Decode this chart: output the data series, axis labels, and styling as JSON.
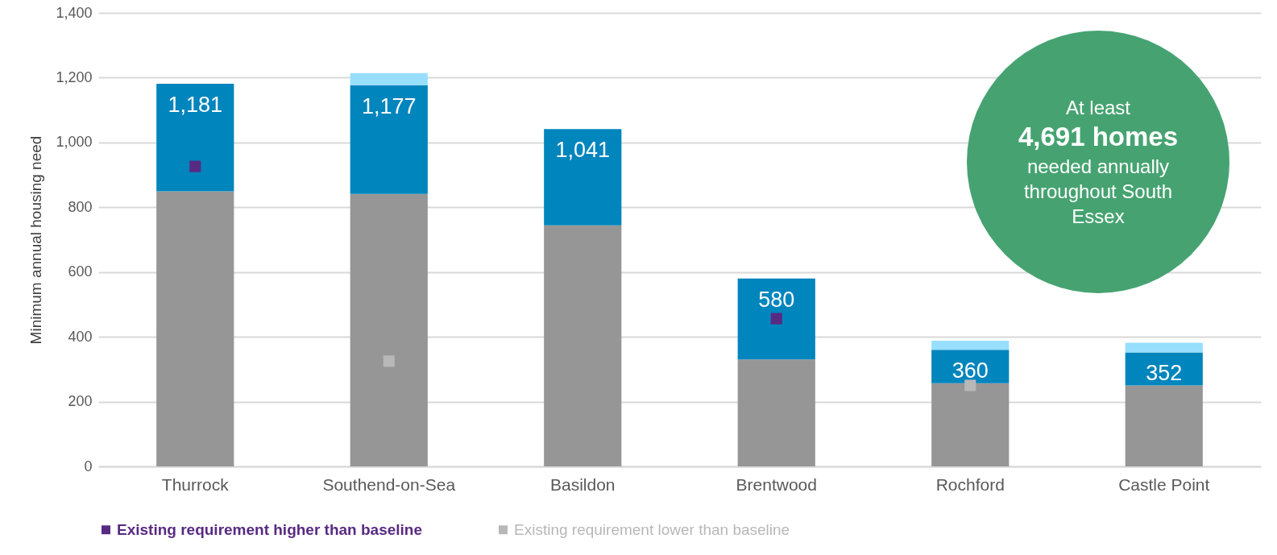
{
  "chart_data": {
    "type": "bar",
    "stacked": true,
    "ylabel": "Minimum annual housing need",
    "categories": [
      "Thurrock",
      "Southend-on-Sea",
      "Basildon",
      "Brentwood",
      "Rochford",
      "Castle Point"
    ],
    "ylim": [
      0,
      1400
    ],
    "yticks": [
      0,
      {
        "value": 200,
        "label": "200"
      },
      {
        "value": 400,
        "label": "400"
      },
      {
        "value": 600,
        "label": "600"
      },
      {
        "value": 800,
        "label": "800"
      },
      {
        "value": 1000,
        "label": "1,000"
      },
      {
        "value": 1200,
        "label": "1,200"
      },
      {
        "value": 1400,
        "label": "1,400"
      }
    ],
    "grid": "y",
    "legend": "bottom",
    "marker": "square",
    "series": [
      {
        "color": "#969696",
        "values": [
          849,
          841,
          744,
          330,
          257,
          250
        ]
      },
      {
        "color": "#0085bd",
        "values": [
          332,
          336,
          297,
          250,
          103,
          102
        ]
      },
      {
        "color": "#97dffc",
        "values": [
          null,
          37,
          null,
          null,
          28,
          30
        ]
      },
      {
        "type": "scatter",
        "name": "Existing requirement higher than baseline",
        "color": "#582a83",
        "x": [
          "Thurrock",
          "Brentwood"
        ],
        "values": [
          926,
          456
        ]
      },
      {
        "type": "scatter",
        "name": "Existing requirement lower than baseline",
        "color": "#b8b8b8",
        "x": [
          "Southend-on-Sea",
          "Rochford"
        ],
        "values": [
          325,
          250
        ]
      }
    ],
    "annotations": [
      "At least",
      "4,691 homes",
      "needed annually",
      "throughout South Essex",
      {
        "text": "1,181",
        "x": "Thurrock",
        "y": 1181
      },
      {
        "text": "1,177",
        "x": "Southend-on-Sea",
        "y": 1177
      },
      {
        "text": "1,041",
        "x": "Basildon",
        "y": 1041
      },
      {
        "text": "580",
        "x": "Brentwood",
        "y": 580
      },
      {
        "text": "360",
        "x": "Rochford",
        "y": 360
      },
      {
        "text": "352",
        "x": "Castle Point",
        "y": 352
      }
    ]
  }
}
